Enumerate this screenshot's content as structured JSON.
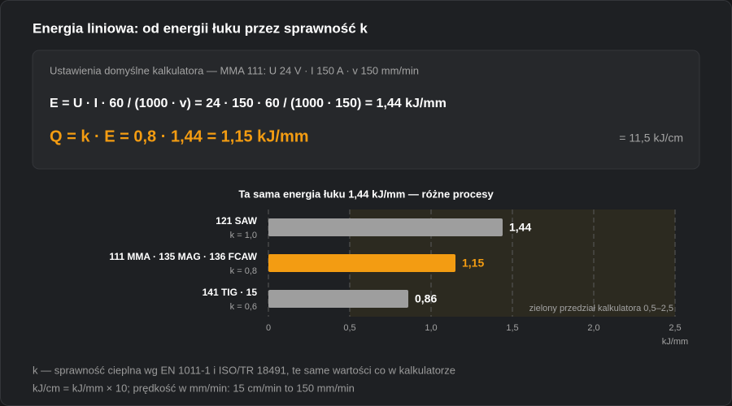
{
  "header": {
    "title": "Energia liniowa: od energii łuku przez sprawność k"
  },
  "panel": {
    "settings": "Ustawienia domyślne kalkulatora — MMA 111: U 24 V · I 150 A · v 150 mm/min",
    "formula_e": "E = U · I · 60 / (1000 · v) = 24 · 150 · 60 / (1000 · 150) = 1,44 kJ/mm",
    "formula_q": "Q = k · E = 0,8 · 1,44 = 1,15 kJ/mm",
    "per_cm": "= 11,5 kJ/cm"
  },
  "chart_data": {
    "type": "bar",
    "orientation": "horizontal",
    "title": "Ta sama energia łuku 1,44 kJ/mm — różne procesy",
    "categories": [
      "121 SAW",
      "111 MMA · 135 MAG · 136 FCAW",
      "141 TIG · 15"
    ],
    "sublabels": [
      "k = 1,0",
      "k = 0,8",
      "k = 0,6"
    ],
    "values": [
      1.44,
      1.15,
      0.86
    ],
    "value_labels": [
      "1,44",
      "1,15",
      "0,86"
    ],
    "colors": [
      "#9e9e9e",
      "#f39c12",
      "#9e9e9e"
    ],
    "value_label_colors": [
      "#ffffff",
      "#f39c12",
      "#ffffff"
    ],
    "xlim": [
      0,
      2.5
    ],
    "xticks": [
      0,
      {
        "value": 0.5,
        "label": "0,5"
      },
      {
        "value": 1.0,
        "label": "1,0"
      },
      {
        "value": 1.5,
        "label": "1,5"
      },
      {
        "value": 2.0,
        "label": "2,0"
      },
      {
        "value": 2.5,
        "label": "2,5"
      }
    ],
    "xlabel": "kJ/mm",
    "band": [
      0.5,
      2.5
    ],
    "band_color": "#2c2a20",
    "annotation": "zielony przedział kalkulatora 0,5–2,5",
    "grid": true
  },
  "footer": {
    "lines": [
      "k — sprawność cieplna wg EN 1011-1 i ISO/TR 18491, te same wartości co w kalkulatorze",
      "kJ/cm = kJ/mm × 10; prędkość w mm/min: 15 cm/min to 150 mm/min"
    ]
  }
}
